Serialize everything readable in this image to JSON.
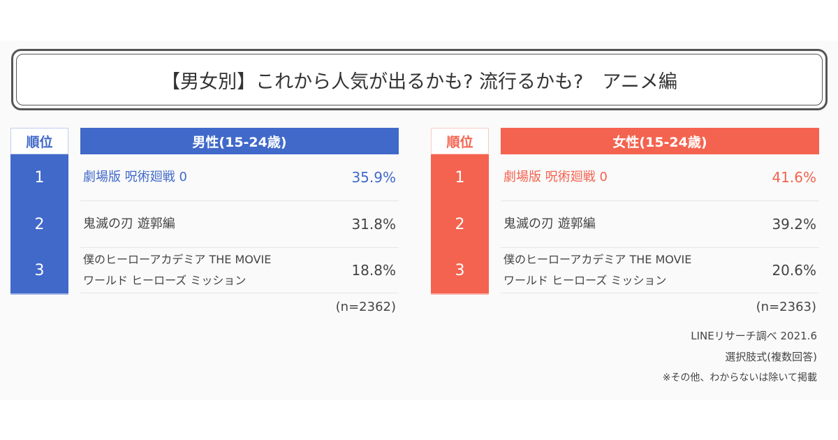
{
  "title": "【男女別】これから人気が出るかも? 流行るかも?　アニメ編",
  "colors": {
    "male": "#4169c9",
    "female": "#f4634f",
    "text": "#444444"
  },
  "rank_header": "順位",
  "male": {
    "header": "男性(15-24歳)",
    "n": "(n=2362)",
    "rows": [
      {
        "rank": "1",
        "name": "劇場版 呪術廻戦 0",
        "name2": "",
        "pct": "35.9%"
      },
      {
        "rank": "2",
        "name": "鬼滅の刃 遊郭編",
        "name2": "",
        "pct": "31.8%"
      },
      {
        "rank": "3",
        "name": "僕のヒーローアカデミア THE MOVIE",
        "name2": "ワールド ヒーローズ ミッション",
        "pct": "18.8%"
      }
    ]
  },
  "female": {
    "header": "女性(15-24歳)",
    "n": "(n=2363)",
    "rows": [
      {
        "rank": "1",
        "name": "劇場版 呪術廻戦 0",
        "name2": "",
        "pct": "41.6%"
      },
      {
        "rank": "2",
        "name": "鬼滅の刃 遊郭編",
        "name2": "",
        "pct": "39.2%"
      },
      {
        "rank": "3",
        "name": "僕のヒーローアカデミア THE MOVIE",
        "name2": "ワールド ヒーローズ ミッション",
        "pct": "20.6%"
      }
    ]
  },
  "footer": {
    "source": "LINEリサーチ調べ 2021.6",
    "method": "選択肢式(複数回答)",
    "note": "※その他、わからないは除いて掲載"
  }
}
